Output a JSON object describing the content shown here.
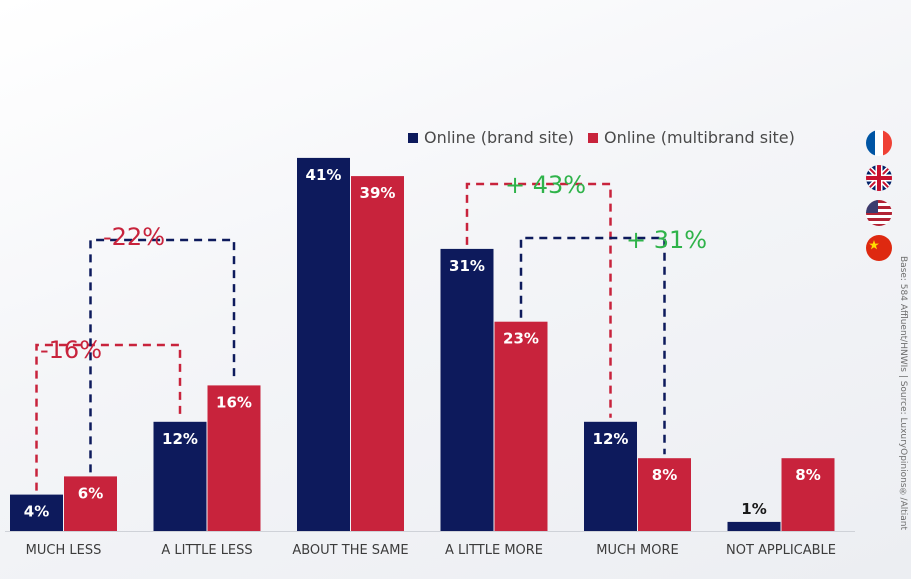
{
  "legend": {
    "brand_label": "Online (brand site)",
    "multibrand_label": "Online (multibrand site)"
  },
  "flags": [
    "France",
    "United Kingdom",
    "United States",
    "China"
  ],
  "source_note": "Base: 584 Affluent/HNWIs | Source: LuxuryOpinions®/Altiant",
  "chart_data": {
    "type": "bar",
    "categories": [
      "MUCH LESS",
      "A LITTLE LESS",
      "ABOUT THE SAME",
      "A LITTLE MORE",
      "MUCH MORE",
      "NOT APPLICABLE"
    ],
    "series": [
      {
        "name": "Online (brand site)",
        "color": "#0d1a5c",
        "values": [
          4,
          12,
          41,
          31,
          12,
          1
        ],
        "labels": [
          "4%",
          "12%",
          "41%",
          "31%",
          "12%",
          "1%"
        ]
      },
      {
        "name": "Online (multibrand site)",
        "color": "#c8233c",
        "values": [
          6,
          16,
          39,
          23,
          8,
          8
        ],
        "labels": [
          "6%",
          "16%",
          "39%",
          "23%",
          "8%",
          "8%"
        ]
      }
    ],
    "ylim": [
      0,
      45
    ],
    "annotations": [
      {
        "text": "-16%",
        "from": {
          "series": 0,
          "category": 0
        },
        "to": {
          "series": 0,
          "category": 1
        },
        "color": "#c8233c",
        "style": "dashed"
      },
      {
        "text": "-22%",
        "from": {
          "series": 1,
          "category": 0
        },
        "to": {
          "series": 1,
          "category": 1
        },
        "color": "#c8233c",
        "style": "dashed"
      },
      {
        "text": "+ 43%",
        "from": {
          "series": 0,
          "category": 3
        },
        "to": {
          "series": 0,
          "category": 4
        },
        "color": "#2fb34a",
        "style": "dashed"
      },
      {
        "text": "+ 31%",
        "from": {
          "series": 1,
          "category": 3
        },
        "to": {
          "series": 1,
          "category": 4
        },
        "color": "#2fb34a",
        "style": "dashed"
      }
    ]
  }
}
